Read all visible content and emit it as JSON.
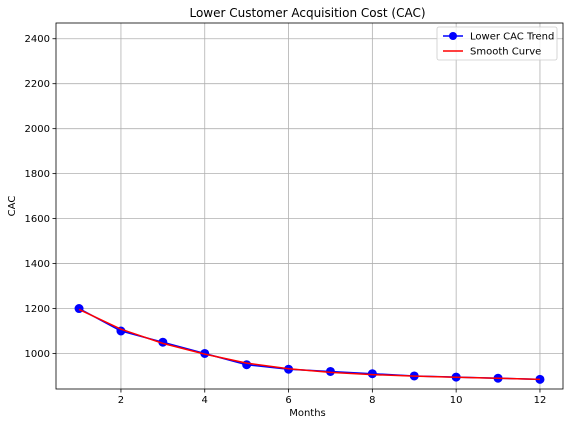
{
  "chart_data": {
    "type": "line",
    "title": "Lower Customer Acquisition Cost (CAC)",
    "xlabel": "Months",
    "ylabel": "CAC",
    "x": [
      1,
      2,
      3,
      4,
      5,
      6,
      7,
      8,
      9,
      10,
      11,
      12
    ],
    "xticks": [
      2,
      4,
      6,
      8,
      10,
      12
    ],
    "yticks": [
      1000,
      1200,
      1400,
      1600,
      1800,
      2000,
      2200,
      2400
    ],
    "xlim": [
      0.45,
      12.55
    ],
    "ylim": [
      842,
      2470
    ],
    "grid": true,
    "legend_position": "top-right",
    "series": [
      {
        "name": "Lower CAC Trend",
        "color": "#0000ff",
        "marker": "circle",
        "values": [
          1200,
          1100,
          1050,
          1000,
          950,
          930,
          920,
          910,
          900,
          895,
          890,
          885
        ]
      },
      {
        "name": "Smooth Curve",
        "color": "#ff0000",
        "marker": "none",
        "values": [
          1196,
          1108,
          1045,
          997,
          957,
          932,
          916,
          906,
          899,
          894,
          890,
          885
        ]
      }
    ]
  }
}
